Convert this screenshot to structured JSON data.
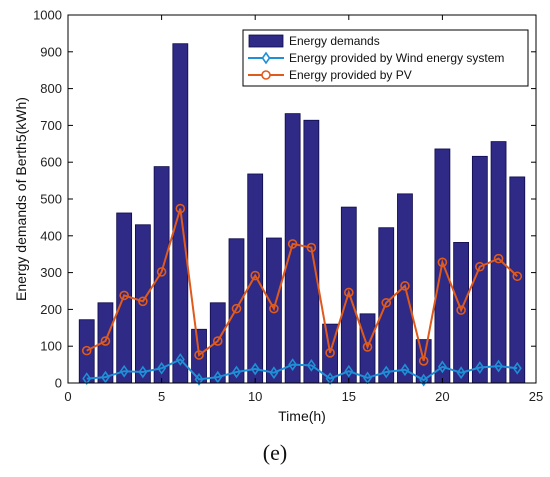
{
  "caption": "(e)",
  "colors": {
    "bar_fill": "#2e2a85",
    "bar_stroke": "#0d0b4a",
    "wind": "#1f8fd6",
    "pv": "#e05a1c",
    "axis": "#000000"
  },
  "chart_data": {
    "type": "bar",
    "xlabel": "Time(h)",
    "ylabel": "Energy demands of Berth5(kWh)",
    "xlim": [
      0,
      25
    ],
    "ylim": [
      0,
      1000
    ],
    "xticks": [
      0,
      5,
      10,
      15,
      20,
      25
    ],
    "yticks": [
      0,
      100,
      200,
      300,
      400,
      500,
      600,
      700,
      800,
      900,
      1000
    ],
    "x": [
      1,
      2,
      3,
      4,
      5,
      6,
      7,
      8,
      9,
      10,
      11,
      12,
      13,
      14,
      15,
      16,
      17,
      18,
      19,
      20,
      21,
      22,
      23,
      24
    ],
    "legend_position": "top-right",
    "grid": false,
    "series": [
      {
        "name": "Energy demands",
        "type": "bar",
        "values": [
          172,
          218,
          462,
          430,
          588,
          922,
          146,
          218,
          392,
          568,
          394,
          732,
          714,
          160,
          478,
          188,
          422,
          514,
          118,
          636,
          382,
          616,
          656,
          560
        ]
      },
      {
        "name": "Energy provided by Wind energy system",
        "type": "line",
        "marker": "diamond",
        "values": [
          12,
          16,
          32,
          30,
          40,
          64,
          10,
          16,
          30,
          38,
          28,
          50,
          48,
          12,
          32,
          14,
          30,
          36,
          8,
          44,
          28,
          42,
          46,
          40
        ]
      },
      {
        "name": "Energy provided by PV",
        "type": "line",
        "marker": "circle",
        "values": [
          88,
          114,
          238,
          222,
          302,
          474,
          76,
          114,
          202,
          292,
          202,
          378,
          368,
          82,
          246,
          98,
          218,
          264,
          60,
          328,
          198,
          316,
          338,
          290
        ]
      }
    ]
  }
}
